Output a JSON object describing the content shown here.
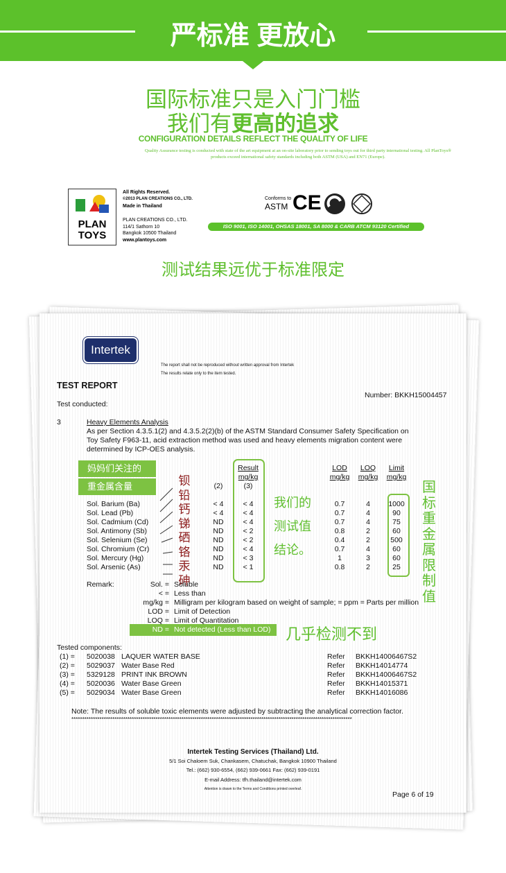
{
  "banner": {
    "title": "严标准 更放心"
  },
  "headline": {
    "line1": "国际标准只是入门门槛",
    "line2_plain": "我们有",
    "line2_bold": "更高的追求",
    "subtitle": "CONFIGURATION DETAILS REFLECT THE QUALITY OF LIFE",
    "note": "Quality Assurance testing is conducted with state of the art equipment at an on-site laboratory prior to sending toys out for third party international testing. All PlanToys® products exceed international safety standards including both ASTM (USA) and EN71 (Europe)."
  },
  "brand": {
    "logo": [
      "PLAN",
      "TOYS"
    ],
    "bold_lines": [
      "All Rights Reserved.",
      "©2013 PLAN CREATIONS CO., LTD.",
      "Made in Thailand"
    ],
    "lines": [
      "PLAN CREATIONS CO., LTD.",
      "114/1 Sathorn 10",
      "Bangkok 10500 Thailand",
      "www.plantoys.com"
    ]
  },
  "certs": {
    "conforms": "Conforms to",
    "astm": "ASTM",
    "ce": "CE",
    "iso": "ISO 9001, ISO 14001, OHSAS 18001, SA 8000 & CARB ATCM 93120 Certified"
  },
  "section_title": "测试结果远优于标准限定",
  "report": {
    "logo": "Intertek",
    "notices": [
      "The report shall not be reproduced without written approval from Intertek",
      "The results relate only to the item tested."
    ],
    "title": "TEST REPORT",
    "number": "Number: BKKH15004457",
    "conducted": "Test conducted:",
    "section_no": "3",
    "section_title": "Heavy Elements Analysis",
    "paragraph": [
      "As per Section 4.3.5.1(2) and 4.3.5.2(2)(b) of the ASTM Standard Consumer Safety Specification on",
      "Toy Safety F963-11, acid extraction method was used and heavy elements migration content were",
      "determined by ICP-OES analysis."
    ],
    "highlight": [
      "妈妈们关注的",
      "重金属含量"
    ],
    "headers": {
      "col2": "(2)",
      "result": [
        "Result",
        "mg/kg",
        "(3)"
      ],
      "lod": [
        "LOD",
        "mg/kg"
      ],
      "loq": [
        "LOQ",
        "mg/kg"
      ],
      "limit": [
        "Limit",
        "mg/kg"
      ]
    },
    "rows": [
      [
        "Sol. Barium (Ba)",
        "< 4",
        "< 4",
        0.7,
        4,
        1000
      ],
      [
        "Sol. Lead (Pb)",
        "< 4",
        "< 4",
        0.7,
        4,
        90
      ],
      [
        "Sol. Cadmium (Cd)",
        "ND",
        "< 4",
        0.7,
        4,
        75
      ],
      [
        "Sol. Antimony (Sb)",
        "ND",
        "< 2",
        0.8,
        2,
        60
      ],
      [
        "Sol. Selenium (Se)",
        "ND",
        "< 2",
        0.4,
        2,
        500
      ],
      [
        "Sol. Chromium (Cr)",
        "ND",
        "< 4",
        0.7,
        4,
        60
      ],
      [
        "Sol. Mercury (Hg)",
        "ND",
        "< 3",
        1,
        3,
        60
      ],
      [
        "Sol. Arsenic (As)",
        "ND",
        "< 1",
        0.8,
        2,
        25
      ]
    ],
    "element_names": [
      "钡",
      "铅",
      "钙",
      "锑",
      "硒",
      "铬",
      "汞",
      "砷"
    ],
    "our_results": [
      "我们的",
      "测试值",
      "结论。"
    ],
    "standard_label": "国标重金属限制值",
    "remark_label": "Remark:",
    "remarks": [
      [
        "Sol. =",
        "Soluble"
      ],
      [
        "< =",
        "Less than"
      ],
      [
        "mg/kg =",
        "Milligram per kilogram based on weight of sample; = ppm = Parts per million"
      ],
      [
        "LOD =",
        "Limit of Detection"
      ],
      [
        "LOQ =",
        "Limit of Quantitation"
      ],
      [
        "ND =",
        "Not detected (Less than LOD)"
      ]
    ],
    "nd_note": "几乎检测不到",
    "components_label": "Tested components:",
    "components": [
      [
        "(1) =",
        "5020038",
        "LAQUER WATER BASE",
        "Refer",
        "BKKH14006467S2"
      ],
      [
        "(2) =",
        "5029037",
        "Water Base Red",
        "Refer",
        "BKKH14014774"
      ],
      [
        "(3) =",
        "5329128",
        "PRINT INK BROWN",
        "Refer",
        "BKKH14006467S2"
      ],
      [
        "(4) =",
        "5020036",
        "Water Base Green",
        "Refer",
        "BKKH14015371"
      ],
      [
        "(5) =",
        "5029034",
        "Water Base Green",
        "Refer",
        "BKKH14016086"
      ]
    ],
    "note": "Note: The results of soluble toxic elements were adjusted by subtracting the analytical correction factor.",
    "asterisks": "**********************************************************************************************************************************",
    "footer": {
      "company": "Intertek Testing Services (Thailand) Ltd.",
      "address": "5/1 Soi Chaloem Suk, Chankasem, Chatuchak, Bangkok 10900 Thailand",
      "tel": "Tel.: (662) 930-6554, (662) 939-0661  Fax: (662) 939-0191",
      "email": "E-mail Address: tfh.thailand@intertek.com",
      "attention": "Attention is drawn to the Terms and Conditions printed overleaf.",
      "page": "Page 6 of 19"
    }
  }
}
